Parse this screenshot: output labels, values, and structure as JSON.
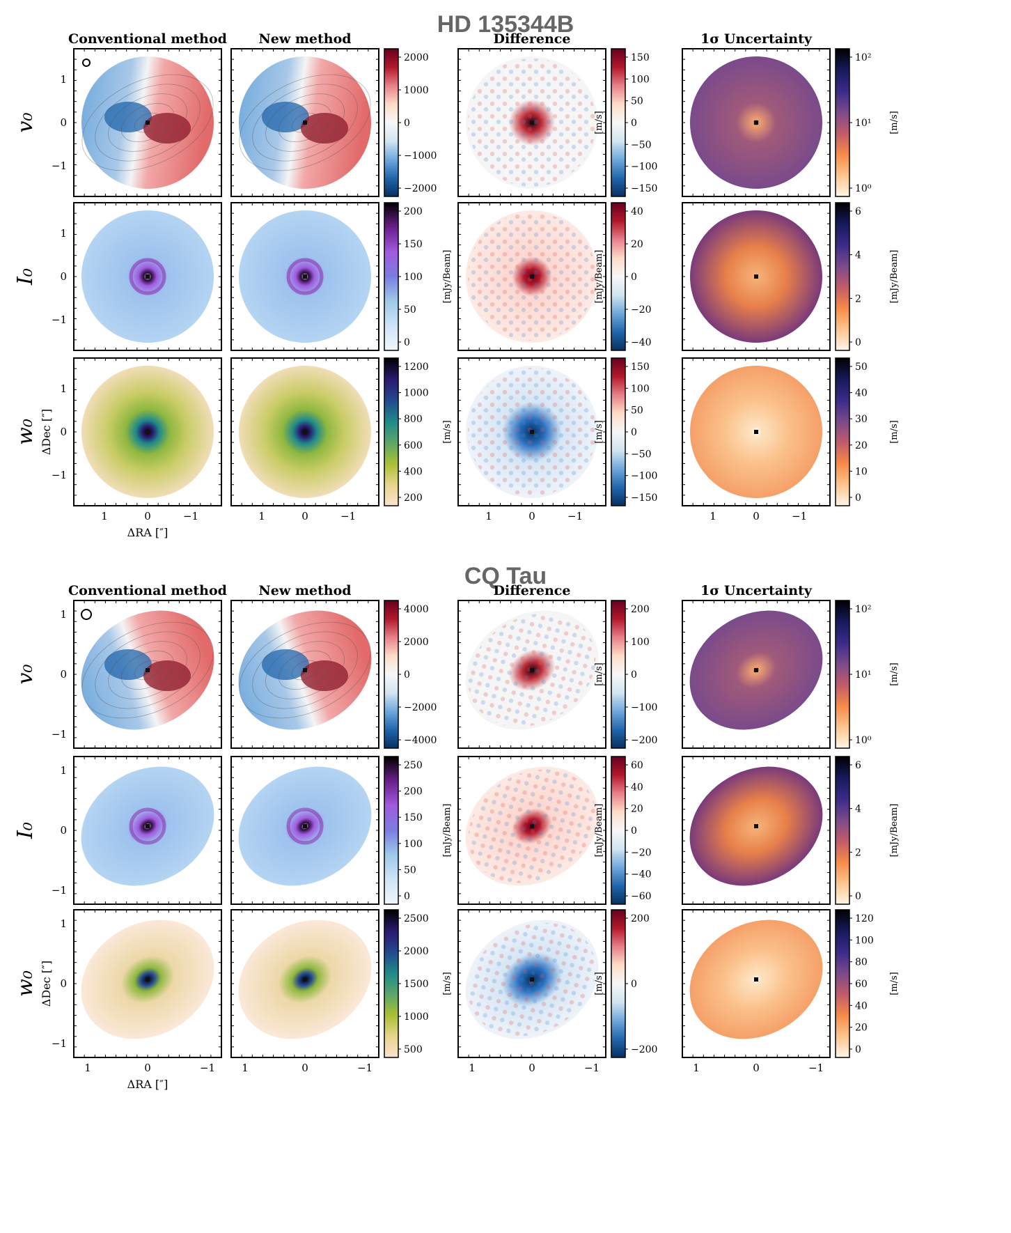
{
  "sections": [
    {
      "title": "HD 135344B",
      "shape": "round",
      "col_titles": [
        "Conventional method",
        "New method",
        "Difference",
        "1σ Uncertainty"
      ],
      "rows": [
        {
          "label": "v₀",
          "scales": [
            {
              "unit": "",
              "ticks": [
                "2000",
                "1000",
                "0",
                "−1000",
                "−2000"
              ],
              "cmap": "rdbu"
            },
            {
              "unit": "[m/s]",
              "ticks": [
                "150",
                "100",
                "50",
                "0",
                "−50",
                "−100",
                "−150"
              ],
              "cmap": "rdbu"
            },
            {
              "unit": "[m/s]",
              "ticks": [
                "10²",
                "10¹",
                "10⁰"
              ],
              "cmap": "magma"
            }
          ]
        },
        {
          "label": "I₀",
          "scales": [
            {
              "unit": "[mJy/Beam]",
              "ticks": [
                "200",
                "150",
                "100",
                "50",
                "0"
              ],
              "cmap": "blues"
            },
            {
              "unit": "[mJy/Beam]",
              "ticks": [
                "40",
                "20",
                "0",
                "−20",
                "−40"
              ],
              "cmap": "rdbu"
            },
            {
              "unit": "[mJy/Beam]",
              "ticks": [
                "6",
                "4",
                "2",
                "0"
              ],
              "cmap": "magma"
            }
          ]
        },
        {
          "label": "w₀",
          "scales": [
            {
              "unit": "[m/s]",
              "ticks": [
                "1200",
                "1000",
                "800",
                "600",
                "400",
                "200"
              ],
              "cmap": "gist"
            },
            {
              "unit": "[m/s]",
              "ticks": [
                "150",
                "100",
                "50",
                "0",
                "−50",
                "−100",
                "−150"
              ],
              "cmap": "rdbu"
            },
            {
              "unit": "[m/s]",
              "ticks": [
                "50",
                "40",
                "30",
                "20",
                "10",
                "0"
              ],
              "cmap": "magma"
            }
          ]
        }
      ],
      "y_ticks": [
        "1",
        "0",
        "−1"
      ],
      "x_ticks": [
        "1",
        "0",
        "−1"
      ],
      "ylabel": "ΔDec [″]",
      "xlabel": "ΔRA [″]"
    },
    {
      "title": "CQ Tau",
      "shape": "oval",
      "col_titles": [
        "Conventional method",
        "New method",
        "Difference",
        "1σ Uncertainty"
      ],
      "rows": [
        {
          "label": "v₀",
          "scales": [
            {
              "unit": "",
              "ticks": [
                "4000",
                "2000",
                "0",
                "−2000",
                "−4000"
              ],
              "cmap": "rdbu"
            },
            {
              "unit": "[m/s]",
              "ticks": [
                "200",
                "100",
                "0",
                "−100",
                "−200"
              ],
              "cmap": "rdbu"
            },
            {
              "unit": "[m/s]",
              "ticks": [
                "10²",
                "10¹",
                "10⁰"
              ],
              "cmap": "magma"
            }
          ]
        },
        {
          "label": "I₀",
          "scales": [
            {
              "unit": "[mJy/Beam]",
              "ticks": [
                "250",
                "200",
                "150",
                "100",
                "50",
                "0"
              ],
              "cmap": "blues"
            },
            {
              "unit": "[mJy/Beam]",
              "ticks": [
                "60",
                "40",
                "20",
                "0",
                "−20",
                "−40",
                "−60"
              ],
              "cmap": "rdbu"
            },
            {
              "unit": "[mJy/Beam]",
              "ticks": [
                "6",
                "4",
                "2",
                "0"
              ],
              "cmap": "magma"
            }
          ]
        },
        {
          "label": "w₀",
          "scales": [
            {
              "unit": "[m/s]",
              "ticks": [
                "2500",
                "2000",
                "1500",
                "1000",
                "500"
              ],
              "cmap": "gist"
            },
            {
              "unit": "[m/s]",
              "ticks": [
                "200",
                "0",
                "−200"
              ],
              "cmap": "rdbu"
            },
            {
              "unit": "[m/s]",
              "ticks": [
                "120",
                "100",
                "80",
                "60",
                "40",
                "20",
                "0"
              ],
              "cmap": "magma"
            }
          ]
        }
      ],
      "y_ticks": [
        "1",
        "0",
        "−1"
      ],
      "x_ticks": [
        "1",
        "0",
        "−1"
      ],
      "ylabel": "ΔDec [″]",
      "xlabel": "ΔRA [″]"
    }
  ],
  "colors": {
    "rdbu": [
      "#053061",
      "#2166ac",
      "#6fa8dc",
      "#d1e5f0",
      "#f7f7f7",
      "#fddbc7",
      "#e7808a",
      "#b2182b",
      "#67001f"
    ],
    "blues": [
      "#f0f6fc",
      "#cfe3f7",
      "#9ecae9",
      "#7b7ee0",
      "#a05be0",
      "#6a1f8a",
      "#000000"
    ],
    "gist": [
      "#fbe3cf",
      "#e8d48c",
      "#a9c032",
      "#5aa66b",
      "#1f8a8a",
      "#24488f",
      "#2a1a6e",
      "#000000"
    ],
    "magma": [
      "#fff5e6",
      "#fdc58e",
      "#f68a47",
      "#c05b6b",
      "#7a4a8a",
      "#3b2a8a",
      "#161a5a",
      "#000000"
    ]
  }
}
